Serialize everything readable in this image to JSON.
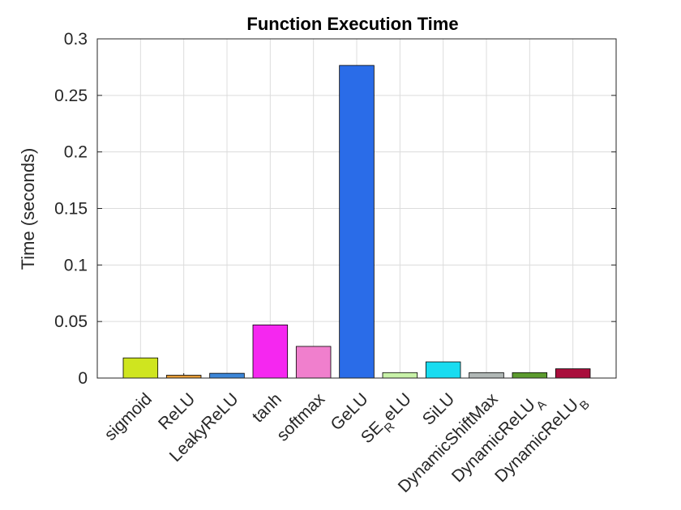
{
  "chart_data": {
    "type": "bar",
    "title": "Function Execution Time",
    "ylabel": "Time (seconds)",
    "xlabel": "",
    "ylim": [
      0,
      0.3
    ],
    "yticks": [
      "0",
      "0.05",
      "0.1",
      "0.15",
      "0.2",
      "0.25",
      "0.3"
    ],
    "grid": true,
    "categories": [
      {
        "text": "sigmoid",
        "sub": ""
      },
      {
        "text": "ReLU",
        "sub": ""
      },
      {
        "text": "LeakyReLU",
        "sub": ""
      },
      {
        "text": "tanh",
        "sub": ""
      },
      {
        "text": "softmax",
        "sub": ""
      },
      {
        "text": "GeLU",
        "sub": ""
      },
      {
        "text": "SE",
        "sub": "R",
        "after": "eLU"
      },
      {
        "text": "SiLU",
        "sub": ""
      },
      {
        "text": "DynamicShiftMax",
        "sub": ""
      },
      {
        "text": "DynamicReLU",
        "sub": "A"
      },
      {
        "text": "DynamicReLU",
        "sub": "B"
      }
    ],
    "values": [
      0.0178,
      0.0025,
      0.0042,
      0.047,
      0.028,
      0.2765,
      0.0048,
      0.0143,
      0.0048,
      0.0048,
      0.0082
    ],
    "colors": [
      "#cfe51f",
      "#e39a35",
      "#3c86d8",
      "#f527f0",
      "#f07fcd",
      "#2a6ce8",
      "#c8f2a8",
      "#19dcf0",
      "#b0b7b5",
      "#5c9b2e",
      "#a90e3c"
    ]
  }
}
